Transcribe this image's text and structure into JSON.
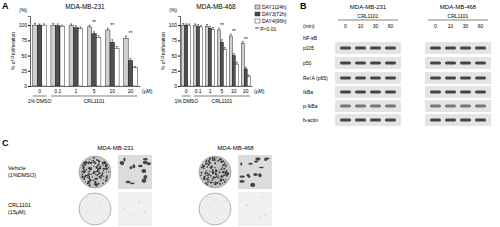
{
  "panel_labels": [
    "A",
    "B",
    "C"
  ],
  "chart_data": [
    {
      "type": "bar",
      "title": "MDA-MB-231",
      "categories": [
        "0",
        "0.1",
        "1",
        "5",
        "10",
        "20"
      ],
      "x_label": "(μM)",
      "y_label": "% of Proliferation",
      "y_unit": "(%)",
      "group_labels": [
        {
          "label": "1% DMSO",
          "from": 0,
          "to": 0
        },
        {
          "label": "CRL1101",
          "from": 1,
          "to": 5
        }
      ],
      "series": [
        {
          "name": "DAY1(24h)",
          "color": "#d0d0d0",
          "values": [
            100,
            100,
            99,
            97,
            92,
            78
          ],
          "errors": [
            3,
            3,
            3,
            3,
            3,
            4
          ]
        },
        {
          "name": "DAY3(72h)",
          "color": "#505050",
          "values": [
            100,
            99,
            96,
            86,
            72,
            42
          ],
          "errors": [
            2,
            3,
            3,
            3,
            4,
            3
          ]
        },
        {
          "name": "DAY4(96h)",
          "color": "#ffffff",
          "values": [
            100,
            98,
            94,
            80,
            62,
            30
          ],
          "errors": [
            2,
            2,
            3,
            3,
            3,
            2
          ]
        }
      ],
      "ylim": [
        0,
        115
      ],
      "yticks": [
        0,
        25,
        50,
        75,
        100
      ],
      "significance": [
        {
          "index": 3,
          "text": "**"
        },
        {
          "index": 4,
          "text": "**"
        },
        {
          "index": 5,
          "text": "**"
        }
      ]
    },
    {
      "type": "bar",
      "title": "MDA-MB-468",
      "categories": [
        "0",
        "0.1",
        "1",
        "5",
        "10",
        "20"
      ],
      "x_label": "(μM)",
      "y_label": "% of Proliferation",
      "y_unit": "(%)",
      "group_labels": [
        {
          "label": "1% DMSO",
          "from": 0,
          "to": 0
        },
        {
          "label": "CRL1101",
          "from": 1,
          "to": 5
        }
      ],
      "series": [
        {
          "name": "DAY1(24h)",
          "color": "#d0d0d0",
          "values": [
            100,
            99,
            98,
            92,
            82,
            70
          ],
          "errors": [
            3,
            3,
            3,
            3,
            3,
            3
          ]
        },
        {
          "name": "DAY3(72h)",
          "color": "#505050",
          "values": [
            100,
            98,
            95,
            72,
            50,
            28
          ],
          "errors": [
            2,
            3,
            3,
            4,
            3,
            3
          ]
        },
        {
          "name": "DAY4(96h)",
          "color": "#ffffff",
          "values": [
            100,
            97,
            93,
            60,
            36,
            16
          ],
          "errors": [
            2,
            2,
            3,
            3,
            3,
            2
          ]
        }
      ],
      "ylim": [
        0,
        115
      ],
      "yticks": [
        0,
        25,
        50,
        75,
        100
      ],
      "significance": [
        {
          "index": 3,
          "text": "**"
        },
        {
          "index": 4,
          "text": "**"
        },
        {
          "index": 5,
          "text": "**"
        }
      ],
      "legend": "top-right",
      "note": "** P<0.01"
    }
  ],
  "blot": {
    "cell_lines": [
      "MDA-MB-231",
      "MDA-MB-468"
    ],
    "treatment": "CRL1101",
    "time_label": "(min)",
    "times": [
      0,
      10,
      30,
      60
    ],
    "rows": [
      {
        "label": "p105",
        "group": "NF-kB"
      },
      {
        "label": "p50"
      },
      {
        "label": "Rel A (p65)"
      },
      {
        "label": "IkBa"
      },
      {
        "label": "p-IkBa"
      },
      {
        "label": "b-actin"
      }
    ]
  },
  "colonies": {
    "columns": [
      "MDA-MB-231",
      "MDA-MB-468"
    ],
    "rows": [
      {
        "label": "Vehicle",
        "sublabel": "(1%DMSO)"
      },
      {
        "label": "CRL1101",
        "sublabel": "(15μM)"
      }
    ]
  }
}
